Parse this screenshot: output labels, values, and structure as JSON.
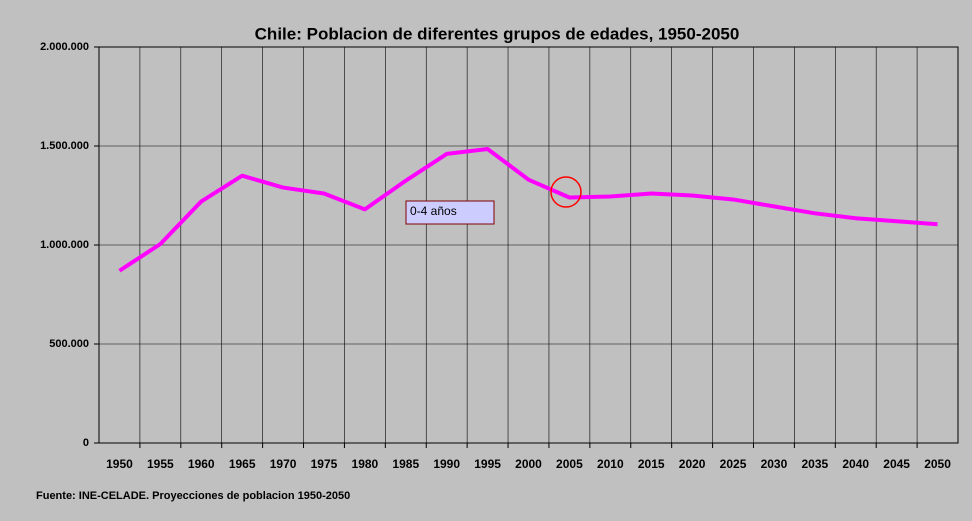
{
  "chart_data": {
    "type": "line",
    "title": "Chile: Poblacion de diferentes grupos de edades, 1950-2050",
    "source": "Fuente: INE-CELADE. Proyecciones de poblacion 1950-2050",
    "categories": [
      "1950",
      "1955",
      "1960",
      "1965",
      "1970",
      "1975",
      "1980",
      "1985",
      "1990",
      "1995",
      "2000",
      "2005",
      "2010",
      "2015",
      "2020",
      "2025",
      "2030",
      "2035",
      "2040",
      "2045",
      "2050"
    ],
    "series": [
      {
        "name": "0-4 años",
        "color": "#ff00ff",
        "values": [
          870000,
          1005000,
          1220000,
          1350000,
          1290000,
          1260000,
          1180000,
          1325000,
          1460000,
          1485000,
          1330000,
          1240000,
          1245000,
          1260000,
          1250000,
          1230000,
          1195000,
          1160000,
          1135000,
          1120000,
          1105000
        ]
      }
    ],
    "ylim": [
      0,
      2000000
    ],
    "yticks": [
      0,
      {
        "value": 500000,
        "label": "500.000"
      },
      {
        "value": 1000000,
        "label": "1.000.000"
      },
      {
        "value": 1500000,
        "label": "1.500.000"
      },
      {
        "value": 2000000,
        "label": "2.000.000"
      }
    ],
    "grid": true
  }
}
